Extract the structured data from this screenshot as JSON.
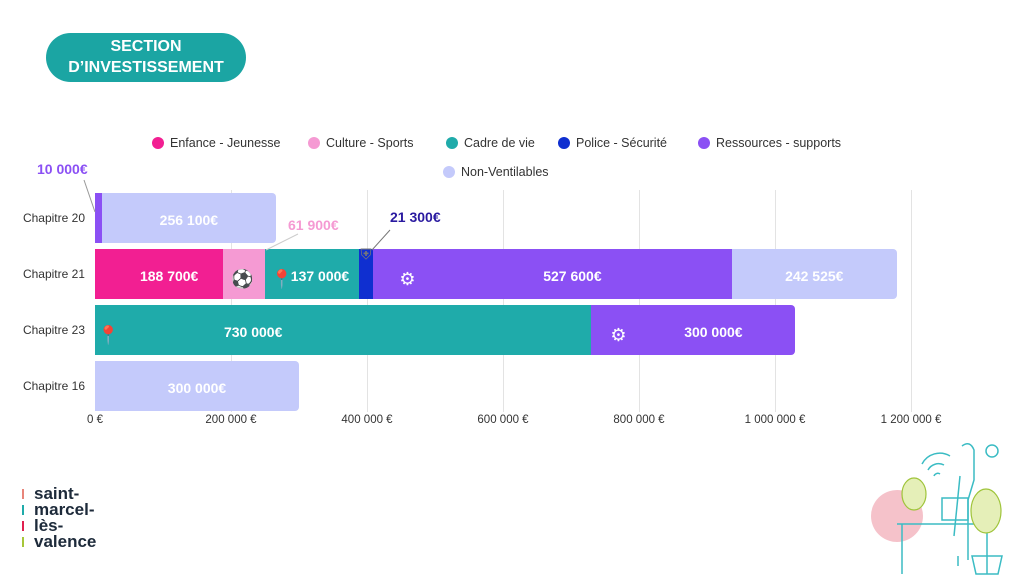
{
  "title_line1": "SECTION",
  "title_line2": "D’INVESTISSEMENT",
  "logo_lines": [
    "saint-",
    "marcel-",
    "lès-",
    "valence"
  ],
  "chart_data": {
    "type": "bar",
    "orientation": "horizontal",
    "stacked": true,
    "categories": [
      "Chapitre 20",
      "Chapitre 21",
      "Chapitre 23",
      "Chapitre 16"
    ],
    "series": [
      {
        "name": "Enfance - Jeunesse",
        "color": "#f21f92",
        "values": [
          null,
          188700,
          null,
          null
        ],
        "labels": [
          null,
          "188 700€",
          null,
          null
        ]
      },
      {
        "name": "Culture - Sports",
        "color": "#f59ad3",
        "values": [
          null,
          61900,
          null,
          null
        ],
        "labels": [
          null,
          "61 900€",
          null,
          null
        ]
      },
      {
        "name": "Cadre de vie",
        "color": "#1fabaa",
        "values": [
          null,
          137000,
          730000,
          null
        ],
        "labels": [
          null,
          "137 000€",
          "730 000€",
          null
        ]
      },
      {
        "name": "Police - Sécurité",
        "color": "#0f2fd0",
        "values": [
          null,
          21300,
          null,
          null
        ],
        "labels": [
          null,
          "21 300€",
          null,
          null
        ]
      },
      {
        "name": "Ressources - supports",
        "color": "#8b50f4",
        "values": [
          10000,
          527600,
          300000,
          null
        ],
        "labels": [
          "10 000€",
          "527 600€",
          "300 000€",
          null
        ]
      },
      {
        "name": "Non-Ventilables",
        "color": "#c4cafb",
        "values": [
          256100,
          242525,
          null,
          300000
        ],
        "labels": [
          "256 100€",
          "242 525€",
          null,
          "300 000€"
        ]
      }
    ],
    "xlim": [
      0,
      1200000
    ],
    "xticks": [
      "0 €",
      "200 000 €",
      "400 000 €",
      "600 000 €",
      "800 000 €",
      "1 000 000 €",
      "1 200 000 €"
    ],
    "xtick_values": [
      0,
      200000,
      400000,
      600000,
      800000,
      1000000,
      1200000
    ],
    "grid": true,
    "legend_position": "top"
  }
}
